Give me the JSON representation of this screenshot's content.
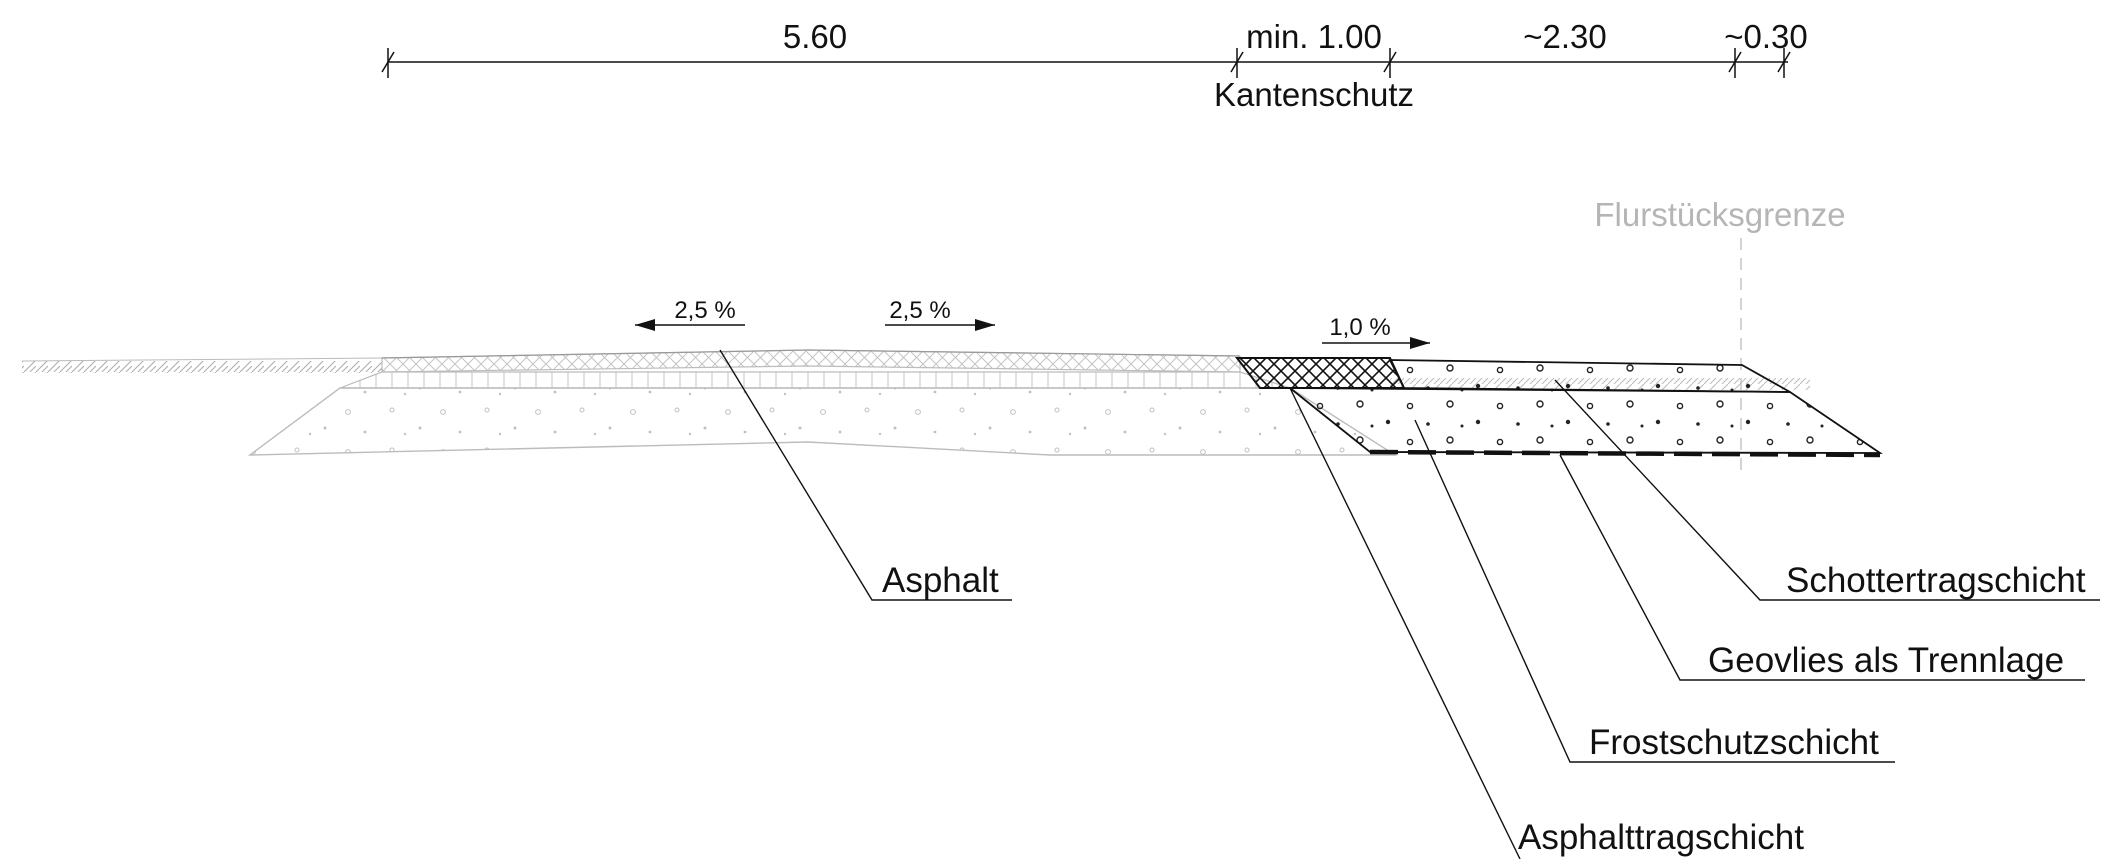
{
  "dimensions": [
    {
      "value": "5.60"
    },
    {
      "value": "min. 1.00"
    },
    {
      "value": "~2.30"
    },
    {
      "value": "~0.30"
    }
  ],
  "dimension_note": "Kantenschutz",
  "boundary_label": "Flurstücksgrenze",
  "slopes": [
    {
      "value": "2,5 %",
      "direction": "left"
    },
    {
      "value": "2,5 %",
      "direction": "right"
    },
    {
      "value": "1,0 %",
      "direction": "right"
    }
  ],
  "layer_labels": [
    {
      "text": "Asphalt"
    },
    {
      "text": "Schottertragschicht"
    },
    {
      "text": "Geovlies als Trennlage"
    },
    {
      "text": "Frostschutzschicht"
    },
    {
      "text": "Asphalttragschicht"
    }
  ],
  "colors": {
    "line": "#111111",
    "light_line": "#b8b8b8",
    "boundary": "#b5b5b5"
  }
}
